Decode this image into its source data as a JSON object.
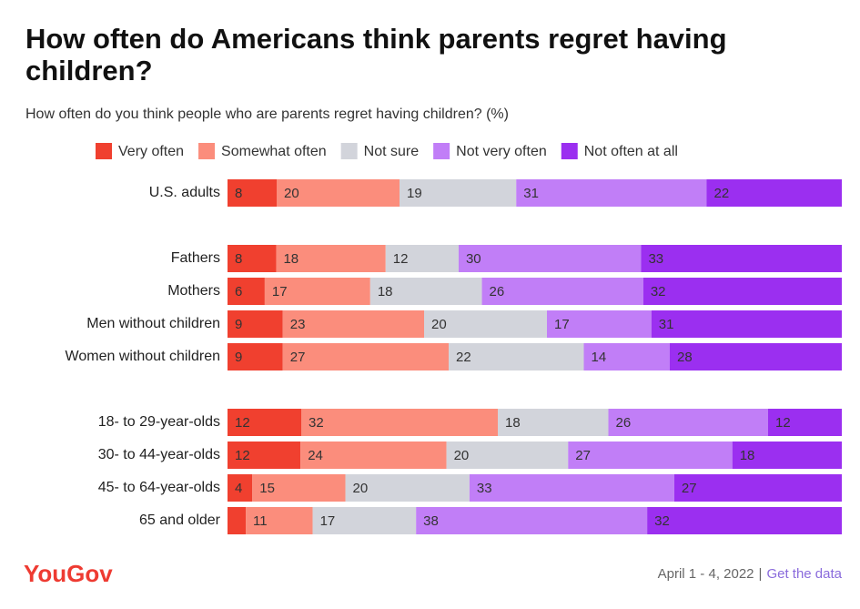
{
  "chart_data": {
    "type": "stacked-bar-horizontal",
    "title": [
      "How often do Americans think parents regret having",
      "children?"
    ],
    "subtitle": "How often do you think people who are parents regret having children? (%)",
    "categories": [
      "U.S. adults",
      null,
      "Fathers",
      "Mothers",
      "Men without children",
      "Women without children",
      null,
      "18- to 29-year-olds",
      "30- to 44-year-olds",
      "45- to 64-year-olds",
      "65 and older"
    ],
    "series": [
      {
        "name": "Very often",
        "color": "#f0402f",
        "values": [
          8,
          null,
          8,
          6,
          9,
          9,
          null,
          12,
          12,
          4,
          3
        ]
      },
      {
        "name": "Somewhat often",
        "color": "#fb8d7c",
        "values": [
          20,
          null,
          18,
          17,
          23,
          27,
          null,
          32,
          24,
          15,
          11
        ]
      },
      {
        "name": "Not sure",
        "color": "#d2d4db",
        "values": [
          19,
          null,
          12,
          18,
          20,
          22,
          null,
          18,
          20,
          20,
          17
        ]
      },
      {
        "name": "Not very often",
        "color": "#c17ef7",
        "values": [
          31,
          null,
          30,
          26,
          17,
          14,
          null,
          26,
          27,
          33,
          38
        ]
      },
      {
        "name": "Not often at all",
        "color": "#9b2ff0",
        "values": [
          22,
          null,
          33,
          32,
          31,
          28,
          null,
          12,
          18,
          27,
          32
        ]
      }
    ]
  },
  "footer": {
    "logo": "YouGov",
    "date": "April 1 - 4, 2022",
    "separator": "|",
    "link": "Get the data"
  }
}
